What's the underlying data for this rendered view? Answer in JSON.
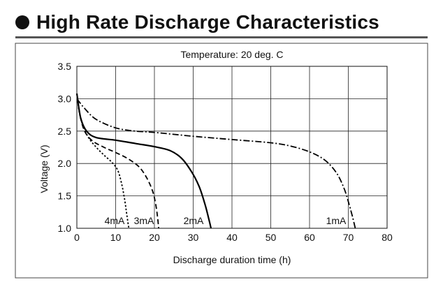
{
  "heading": {
    "title": "High Rate Discharge Characteristics"
  },
  "chart_data": {
    "type": "line",
    "title": "Temperature: 20 deg. C",
    "xlabel": "Discharge duration time (h)",
    "ylabel": "Voltage (V)",
    "xlim": [
      0,
      80
    ],
    "ylim": [
      1.0,
      3.5
    ],
    "xticks": [
      0,
      10,
      20,
      30,
      40,
      50,
      60,
      70,
      80
    ],
    "yticks": [
      "1.0",
      "1.5",
      "2.0",
      "2.5",
      "3.0",
      "3.5"
    ],
    "grid": true,
    "series": [
      {
        "name": "4mA",
        "style": "dotted",
        "x": [
          0,
          0.6,
          1.5,
          3,
          5,
          7,
          9,
          10.5,
          11.5,
          12.3,
          12.9,
          13.4
        ],
        "y": [
          3.08,
          2.8,
          2.6,
          2.4,
          2.25,
          2.13,
          2.02,
          1.9,
          1.7,
          1.45,
          1.2,
          1.0
        ]
      },
      {
        "name": "3mA",
        "style": "dashed",
        "x": [
          0,
          0.8,
          2,
          4,
          7,
          10,
          13,
          16,
          18,
          19.5,
          20.3,
          20.8,
          21.1
        ],
        "y": [
          3.08,
          2.75,
          2.5,
          2.35,
          2.25,
          2.17,
          2.08,
          1.95,
          1.78,
          1.58,
          1.38,
          1.18,
          1.0
        ]
      },
      {
        "name": "2mA",
        "style": "solid",
        "x": [
          0,
          1,
          2.5,
          5,
          10,
          15,
          20,
          24,
          27,
          29.5,
          31.5,
          33,
          34,
          34.6
        ],
        "y": [
          3.08,
          2.7,
          2.5,
          2.4,
          2.36,
          2.31,
          2.26,
          2.2,
          2.08,
          1.88,
          1.65,
          1.38,
          1.15,
          1.0
        ]
      },
      {
        "name": "1mA",
        "style": "dash-dot",
        "x": [
          0,
          2,
          5,
          10,
          15,
          20,
          30,
          40,
          50,
          55,
          60,
          64,
          67,
          69,
          70.3,
          71.2,
          71.8
        ],
        "y": [
          3.0,
          2.85,
          2.68,
          2.55,
          2.5,
          2.48,
          2.42,
          2.37,
          2.32,
          2.27,
          2.18,
          2.05,
          1.85,
          1.6,
          1.35,
          1.15,
          1.0
        ]
      }
    ],
    "annotations": [
      "4mA",
      "3mA",
      "2mA",
      "1mA"
    ]
  }
}
